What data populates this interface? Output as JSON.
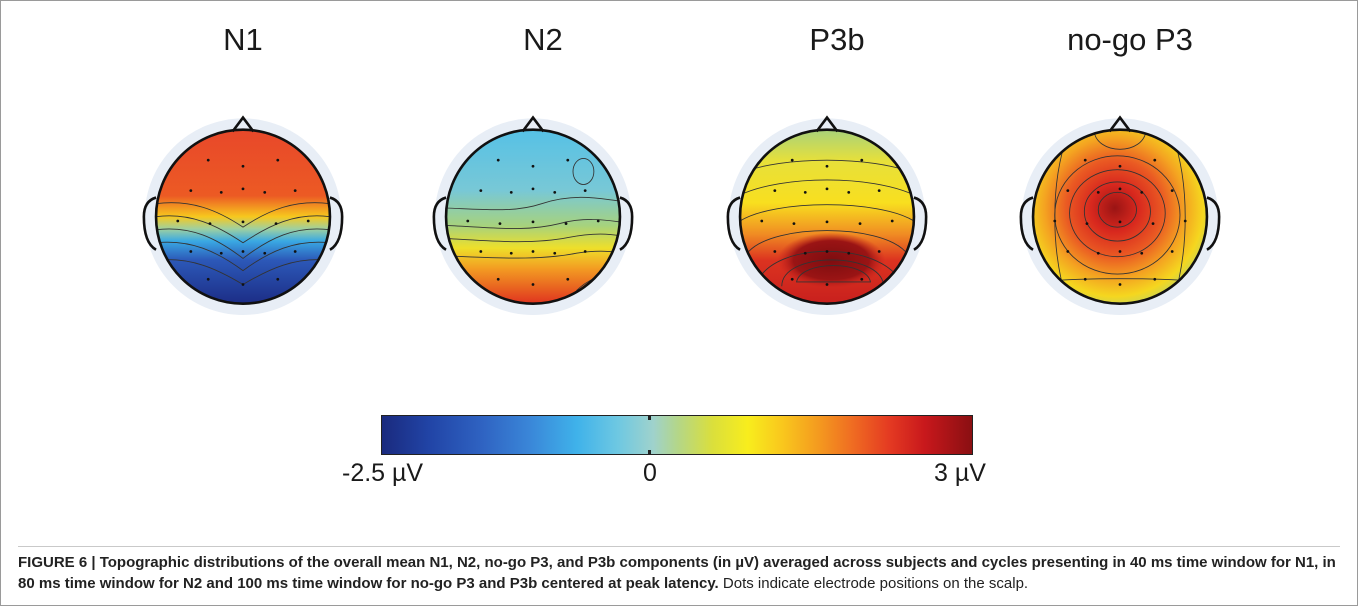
{
  "figure": {
    "panels": [
      {
        "title": "N1"
      },
      {
        "title": "N2"
      },
      {
        "title": "P3b"
      },
      {
        "title": "no-go P3"
      }
    ],
    "colorbar": {
      "min_label": "-2.5 µV",
      "mid_label": "0",
      "max_label": "3 µV",
      "colors": [
        "#1a2a7e",
        "#3fb2ea",
        "#b3d68a",
        "#f8ed1d",
        "#ef6a22",
        "#8a0f12"
      ]
    },
    "caption": {
      "label": "FIGURE 6 |",
      "bold_text": "Topographic distributions of the overall mean N1, N2, no-go P3, and P3b components (in µV) averaged across subjects and cycles presenting in 40 ms time window for N1, in 80 ms time window for N2 and 100 ms time window for no-go P3 and P3b centered at peak latency.",
      "plain_text": "Dots indicate electrode positions on the scalp."
    }
  }
}
